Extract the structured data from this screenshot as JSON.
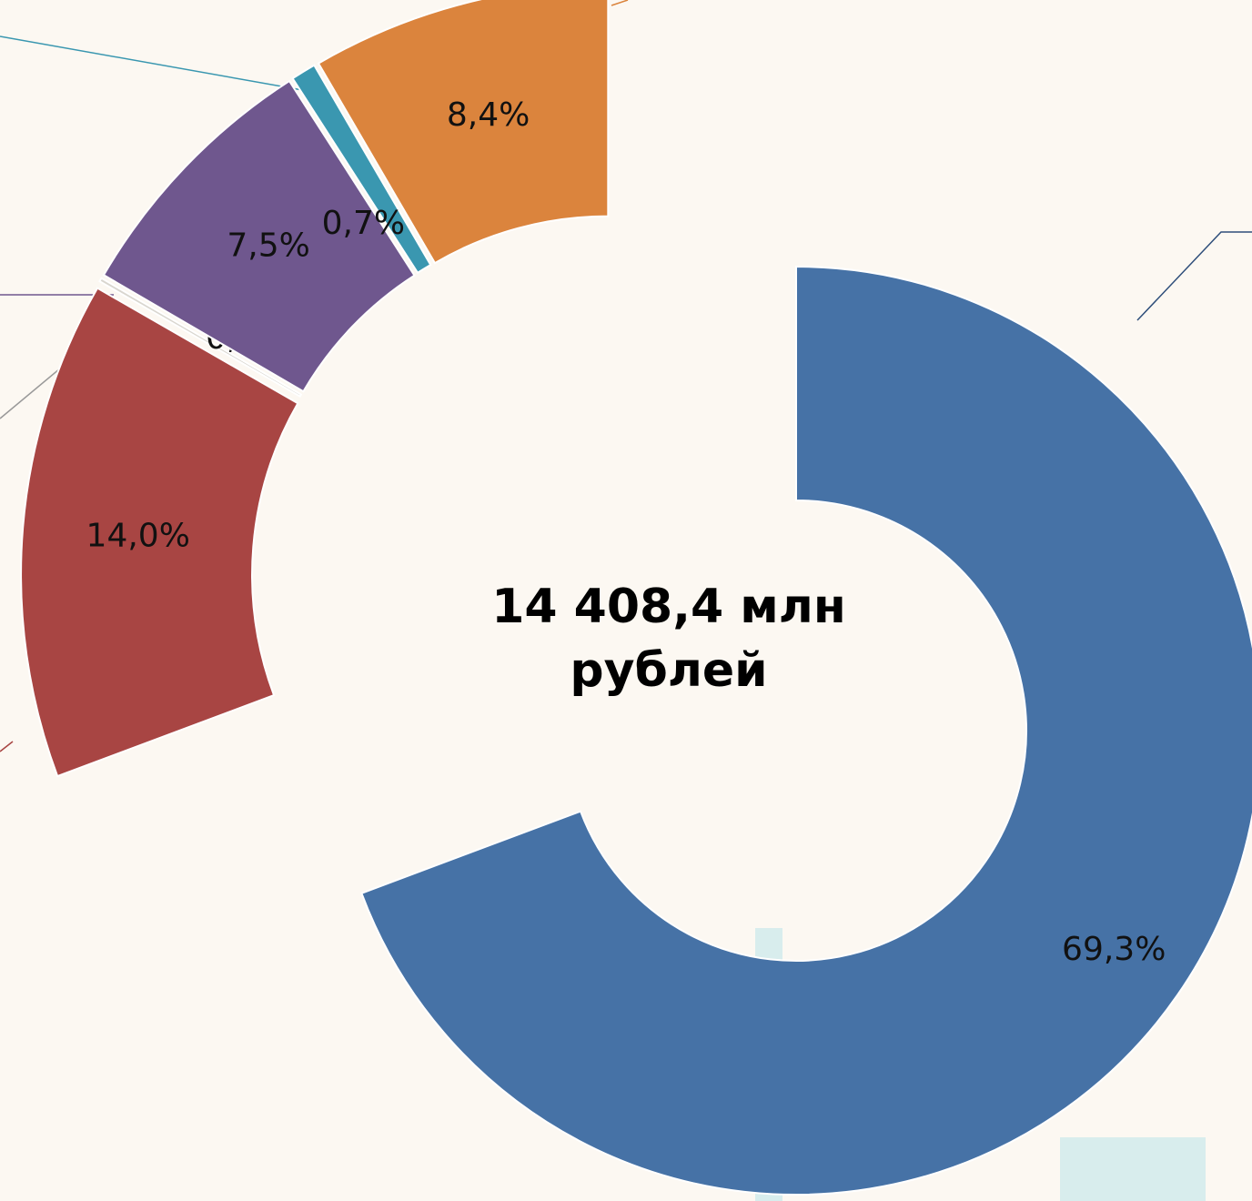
{
  "chart_data": {
    "type": "donut",
    "title": "14 408,4 млн рублей",
    "categories": [
      null,
      null,
      null,
      null,
      null,
      null
    ],
    "values": [
      69.3,
      14.0,
      0.1,
      7.5,
      0.7,
      8.4
    ],
    "value_labels": [
      "69,3%",
      "14,0%",
      "0,1%",
      "7,5%",
      "0,7%",
      "8,4%"
    ],
    "colors": [
      "#4672a6",
      "#a84543",
      "#d9d6cf",
      "#6f578e",
      "#3a97b0",
      "#db843d"
    ]
  }
}
